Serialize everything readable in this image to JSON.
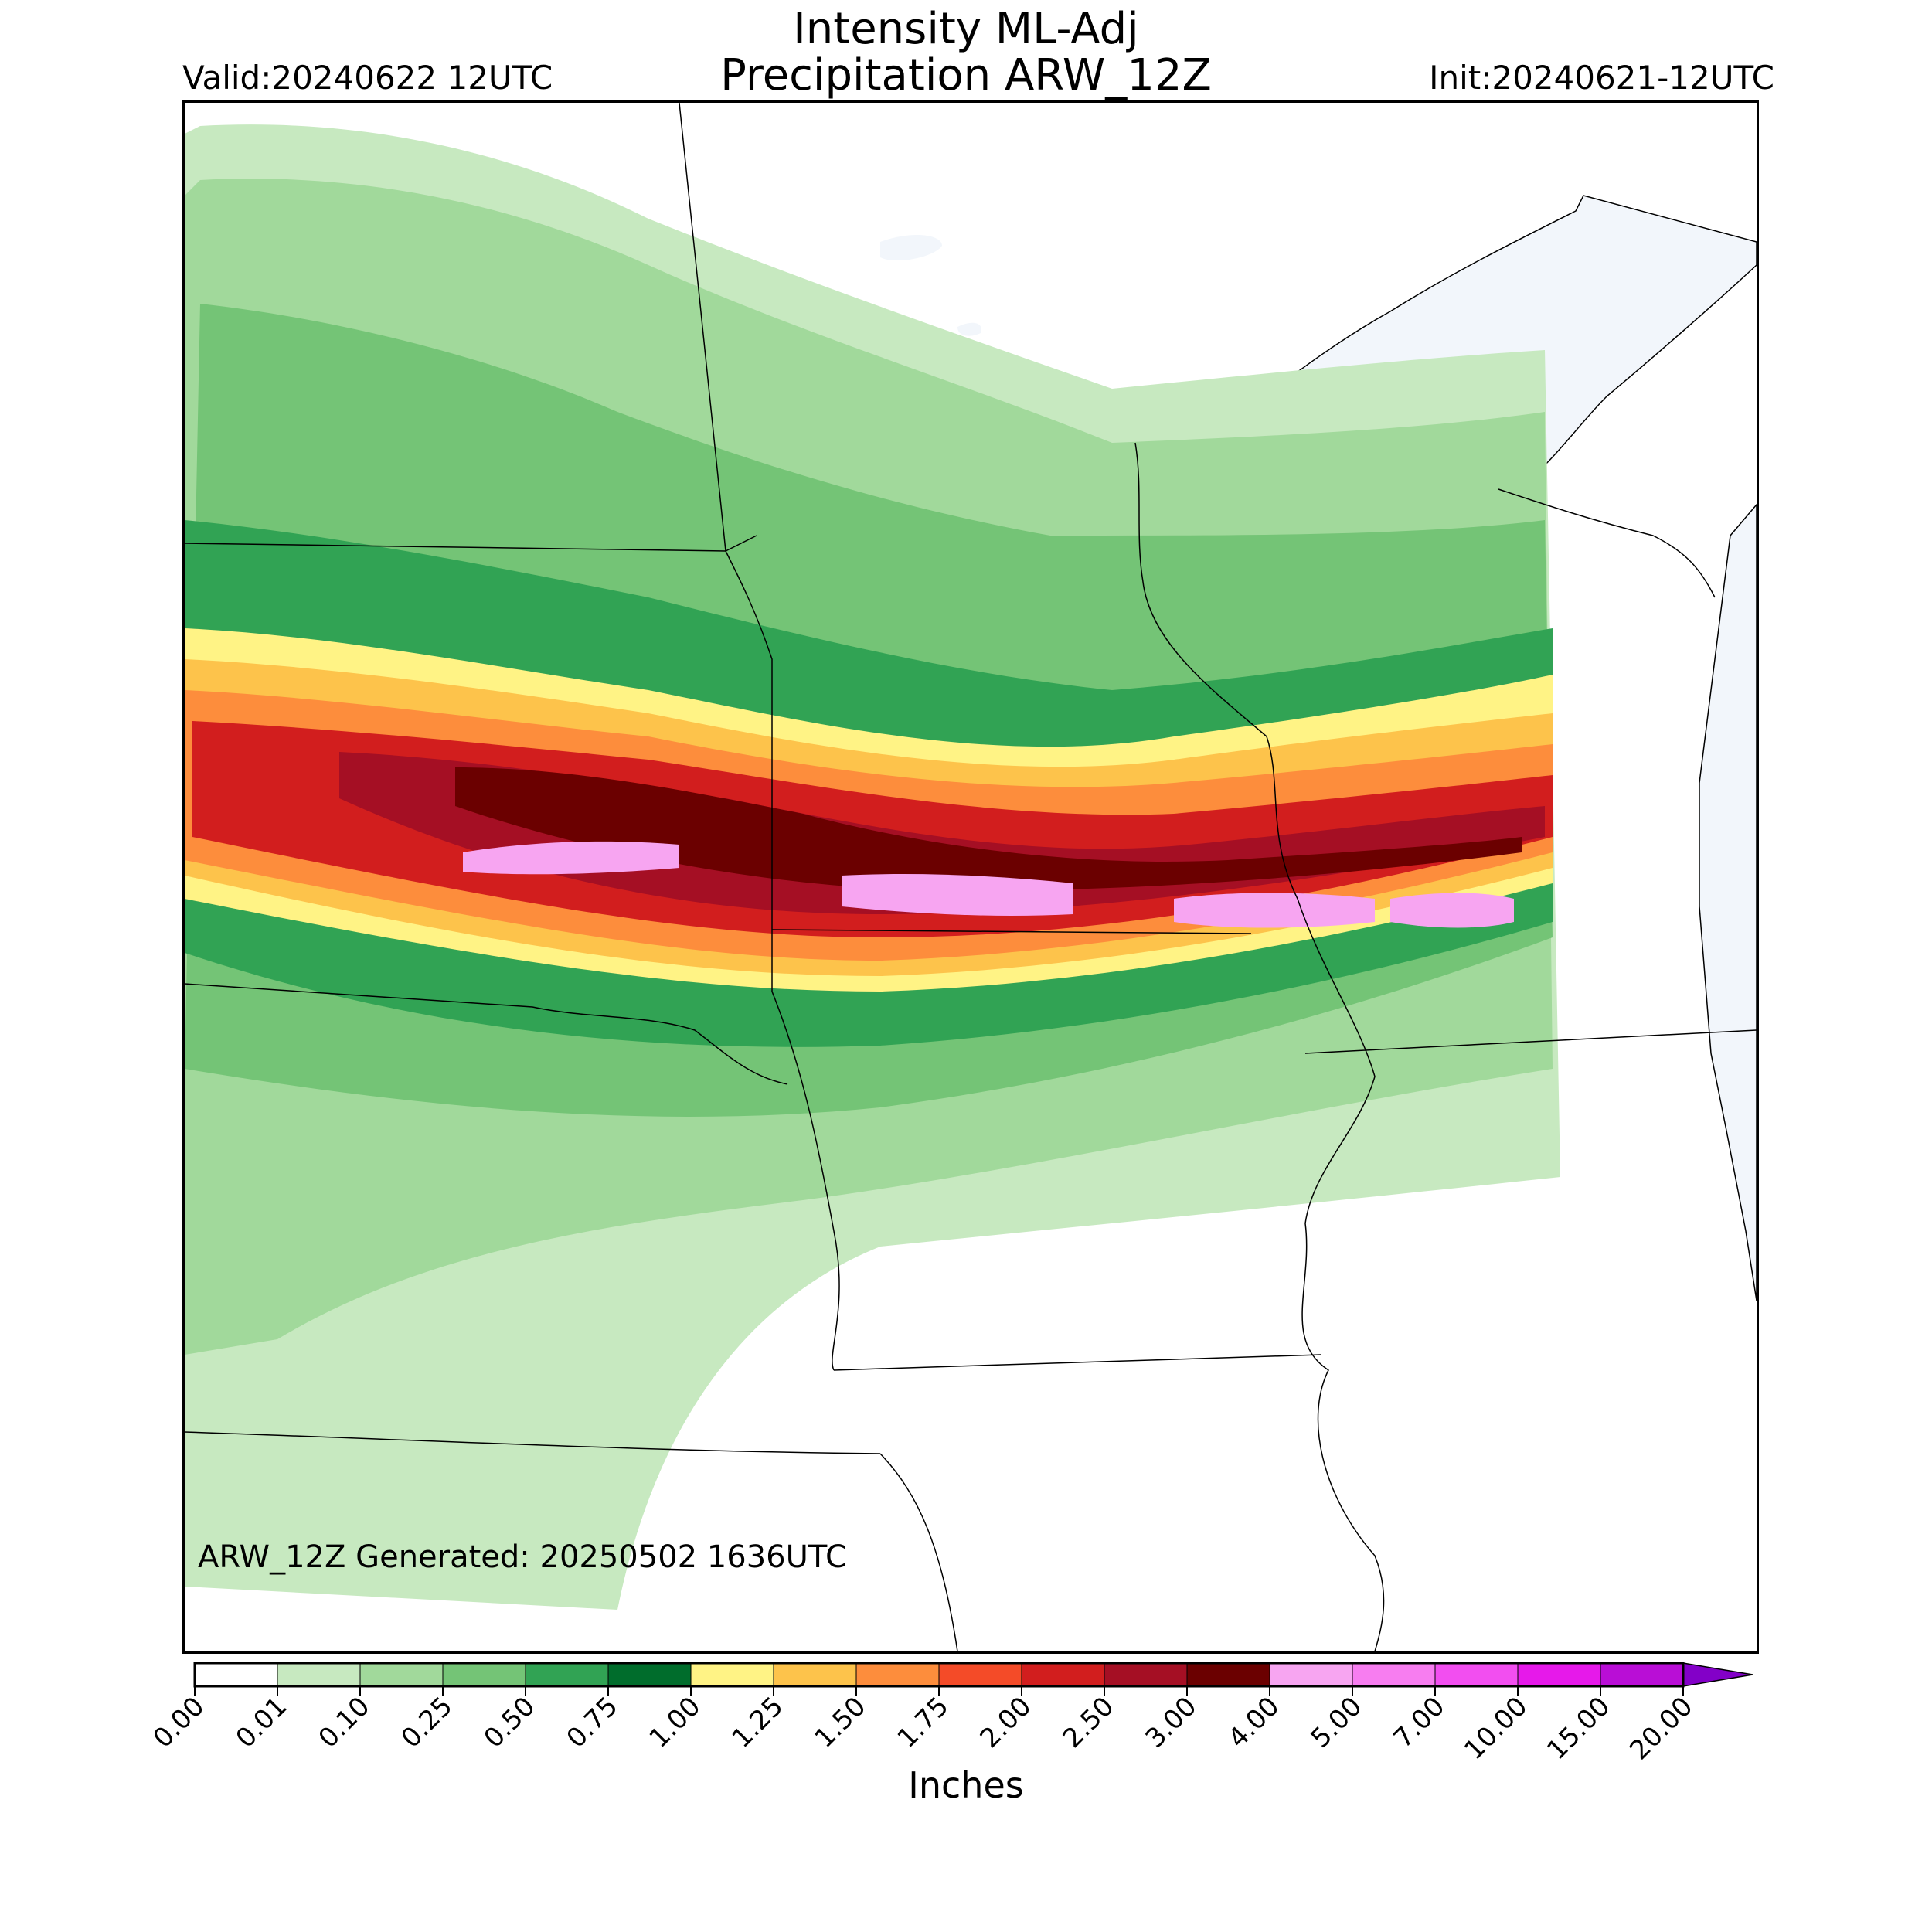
{
  "header": {
    "title_line1": "Intensity ML-Adj",
    "title_line2": "Precipitation ARW_12Z",
    "valid": "Valid:20240622 12UTC",
    "init": "Init:20240621-12UTC"
  },
  "map": {
    "footer_text": "ARW_12Z Generated: 20250502 1636UTC",
    "water_color": "#f2f6fb",
    "boundary_color": "#000000"
  },
  "colorbar": {
    "label": "Inches",
    "ticks": [
      "0.00",
      "0.01",
      "0.10",
      "0.25",
      "0.50",
      "0.75",
      "1.00",
      "1.25",
      "1.50",
      "1.75",
      "2.00",
      "2.50",
      "3.00",
      "4.00",
      "5.00",
      "7.00",
      "10.00",
      "15.00",
      "20.00"
    ],
    "colors": [
      "#ffffff",
      "#c7e9c0",
      "#a1d99b",
      "#74c476",
      "#31a354",
      "#006d2c",
      "#fff385",
      "#fdc34b",
      "#fd8d3c",
      "#f44b28",
      "#d21e1e",
      "#a50f24",
      "#6b0000",
      "#f7a5f1",
      "#f77df0",
      "#f24ef0",
      "#e619ea",
      "#b90ed6",
      "#8300c8"
    ],
    "extend": "max"
  }
}
